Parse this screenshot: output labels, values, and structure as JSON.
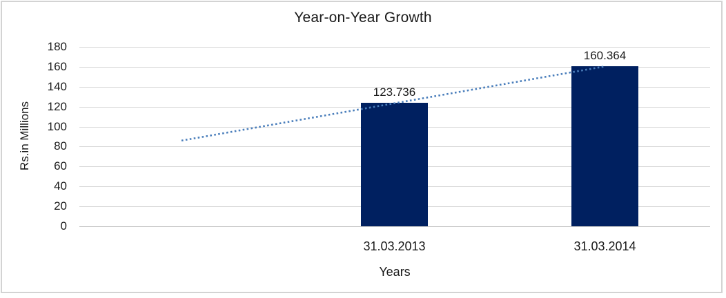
{
  "chart_data": {
    "type": "bar",
    "title": "Year-on-Year Growth",
    "xlabel": "Years",
    "ylabel": "Rs.in Millions",
    "categories": [
      "31.03.2013",
      "31.03.2014"
    ],
    "values": [
      123.736,
      160.364
    ],
    "value_labels": [
      "123.736",
      "160.364"
    ],
    "ylim": [
      0,
      180
    ],
    "ytick_step": 20,
    "yticks": [
      180,
      160,
      140,
      120,
      100,
      80,
      60,
      40,
      20,
      0
    ],
    "grid": true,
    "legend": "none",
    "bar_color": "#002060",
    "gridline_color": "#d9d9d9",
    "frame_color": "#d3d3d3",
    "text_color": "#1a1a1a",
    "trendline": {
      "style": "dotted",
      "color": "#4a7ebb",
      "start_value": 86,
      "end_value": 160.5
    }
  }
}
